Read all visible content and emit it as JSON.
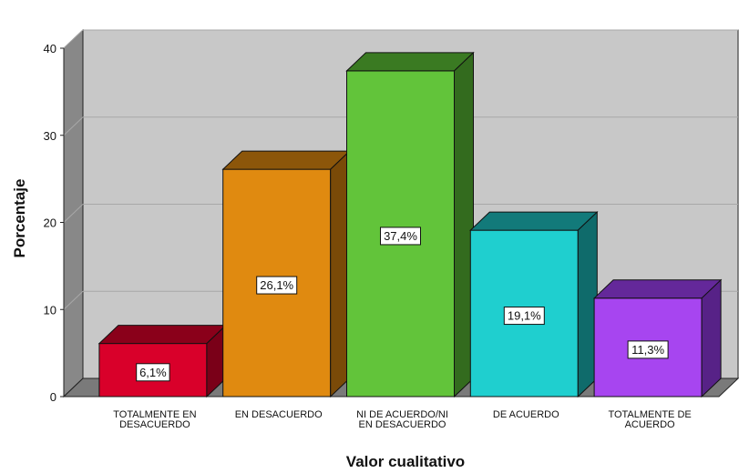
{
  "chart_data": {
    "type": "bar",
    "title": "",
    "xlabel": "Valor cualitativo",
    "ylabel": "Porcentaje",
    "ylim": [
      0,
      40
    ],
    "yticks": [
      0,
      10,
      20,
      30,
      40
    ],
    "grid": true,
    "style": "3d",
    "categories": [
      [
        "TOTALMENTE EN",
        "DESACUERDO"
      ],
      [
        "EN DESACUERDO"
      ],
      [
        "NI DE ACUERDO/NI",
        "EN DESACUERDO"
      ],
      [
        "DE ACUERDO"
      ],
      [
        "TOTALMENTE DE",
        "ACUERDO"
      ]
    ],
    "values": [
      6.1,
      26.1,
      37.4,
      19.1,
      11.3
    ],
    "data_labels": [
      "6,1%",
      "26,1%",
      "37,4%",
      "19,1%",
      "11,3%"
    ],
    "colors": [
      {
        "front": "#d9002a",
        "top": "#8a001a",
        "side": "#7a0018"
      },
      {
        "front": "#e08a10",
        "top": "#8c560a",
        "side": "#7a4a08"
      },
      {
        "front": "#62c43a",
        "top": "#3a7a22",
        "side": "#336b1e"
      },
      {
        "front": "#1fcfcf",
        "top": "#127a7a",
        "side": "#0f6b6b"
      },
      {
        "front": "#a745f0",
        "top": "#64289a",
        "side": "#572287"
      }
    ],
    "plot_colors": {
      "back_wall": "#c8c8c8",
      "side_wall": "#888888",
      "floor": "#7a7a7a",
      "grid": "#a8a8a8"
    }
  }
}
